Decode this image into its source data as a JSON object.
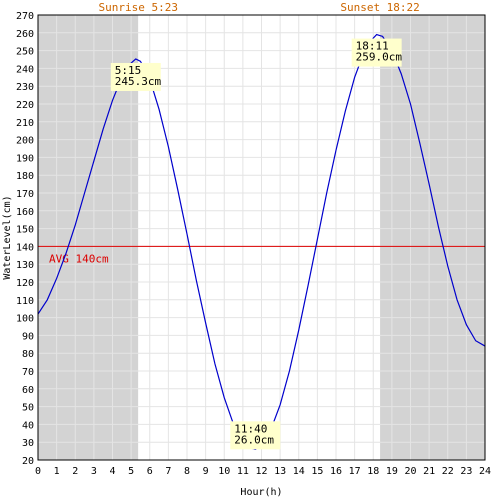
{
  "colors": {
    "night": "#d3d3d3",
    "day": "#ffffff",
    "grid": "#e4e4e4",
    "curve": "#0000cc",
    "avg": "#dd0000",
    "sun_text": "#cc6600",
    "annotation_bg": "#ffffcc"
  },
  "chart_data": {
    "type": "line",
    "xlabel": "Hour(h)",
    "ylabel": "WaterLevel(cm)",
    "xlim": [
      0,
      24
    ],
    "ylim": [
      20,
      270
    ],
    "x_ticks": [
      0,
      1,
      2,
      3,
      4,
      5,
      6,
      7,
      8,
      9,
      10,
      11,
      12,
      13,
      14,
      15,
      16,
      17,
      18,
      19,
      20,
      21,
      22,
      23,
      24
    ],
    "y_ticks": [
      20,
      30,
      40,
      50,
      60,
      70,
      80,
      90,
      100,
      110,
      120,
      130,
      140,
      150,
      160,
      170,
      180,
      190,
      200,
      210,
      220,
      230,
      240,
      250,
      260,
      270
    ],
    "grid": true,
    "sunrise": {
      "label": "Sunrise 5:23",
      "hour": 5.383
    },
    "sunset": {
      "label": "Sunset 18:22",
      "hour": 18.367
    },
    "average": {
      "label": "AVG 140cm",
      "value": 140
    },
    "extremes": [
      {
        "time_label": "5:15",
        "level_label": "245.3cm",
        "hour": 5.25,
        "level": 245.3,
        "kind": "high"
      },
      {
        "time_label": "11:40",
        "level_label": "26.0cm",
        "hour": 11.667,
        "level": 26.0,
        "kind": "low"
      },
      {
        "time_label": "18:11",
        "level_label": "259.0cm",
        "hour": 18.183,
        "level": 259.0,
        "kind": "high"
      }
    ],
    "series": [
      {
        "x": [
          0,
          0.5,
          1,
          1.5,
          2,
          2.5,
          3,
          3.5,
          4,
          4.5,
          5,
          5.25,
          5.5,
          6,
          6.5,
          7,
          7.5,
          8,
          8.5,
          9,
          9.5,
          10,
          10.5,
          11,
          11.5,
          11.667,
          12,
          12.5,
          13,
          13.5,
          14,
          14.5,
          15,
          15.5,
          16,
          16.5,
          17,
          17.5,
          18,
          18.183,
          18.5,
          19,
          19.5,
          20,
          20.5,
          21,
          21.5,
          22,
          22.5,
          23,
          23.5,
          24
        ],
        "values": [
          102,
          110,
          122,
          136,
          152,
          170,
          188,
          206,
          222,
          235,
          243,
          245.3,
          244,
          234,
          217,
          196,
          172,
          147,
          121,
          97,
          74,
          55,
          40,
          30,
          26.5,
          26,
          28,
          37,
          51,
          70,
          93,
          118,
          144,
          170,
          194,
          216,
          235,
          249,
          257,
          259,
          258,
          250,
          237,
          220,
          198,
          175,
          151,
          129,
          110,
          96,
          87,
          84
        ]
      }
    ]
  }
}
